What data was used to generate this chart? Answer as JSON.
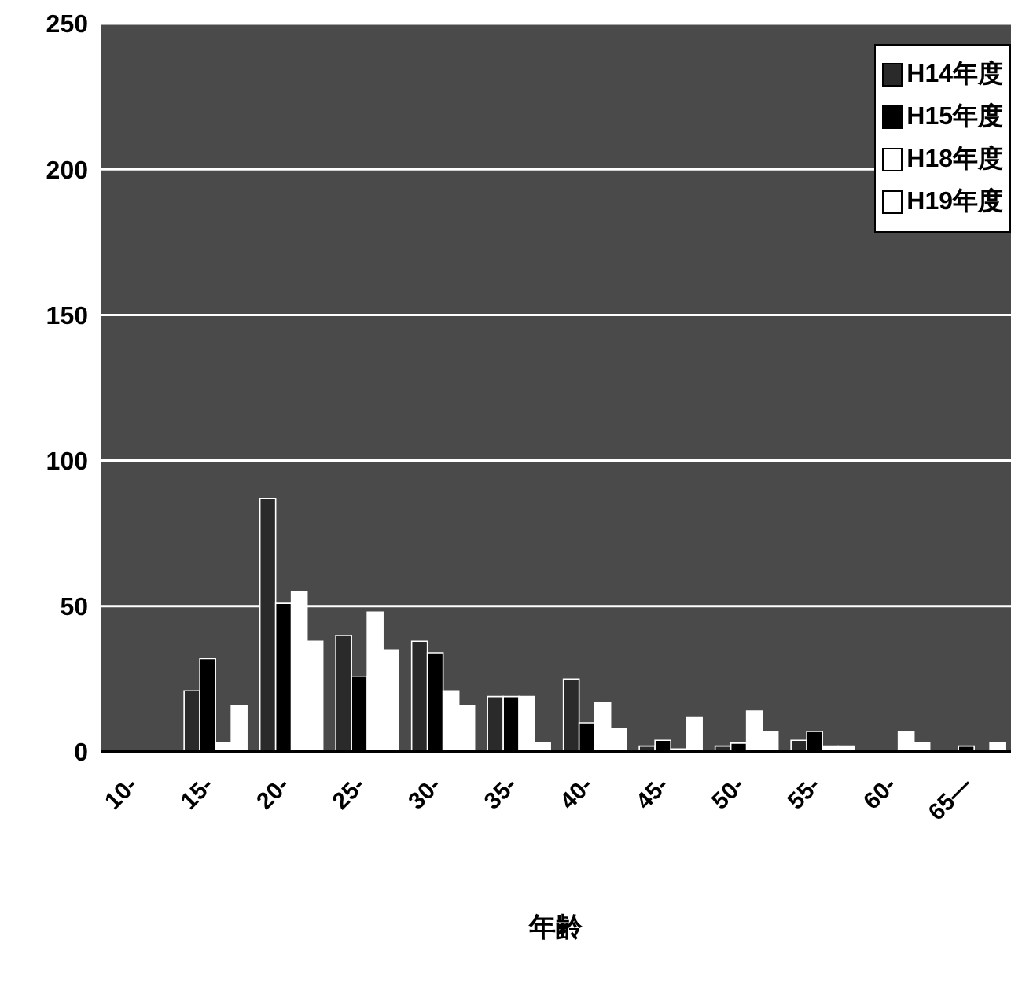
{
  "chart_data": {
    "type": "bar",
    "xlabel": "年齢",
    "categories": [
      "10-",
      "15-",
      "20-",
      "25-",
      "30-",
      "35-",
      "40-",
      "45-",
      "50-",
      "55-",
      "60-",
      "65—"
    ],
    "series": [
      {
        "name": "H14年度",
        "color": "#2a2a2a",
        "values": [
          0,
          21,
          87,
          40,
          38,
          19,
          25,
          2,
          2,
          4,
          0,
          0
        ]
      },
      {
        "name": "H15年度",
        "color": "#000000",
        "values": [
          0,
          32,
          51,
          26,
          34,
          19,
          10,
          4,
          3,
          7,
          0,
          2
        ]
      },
      {
        "name": "H18年度",
        "color": "#ffffff",
        "values": [
          0,
          3,
          55,
          48,
          21,
          19,
          17,
          1,
          14,
          2,
          7,
          0
        ]
      },
      {
        "name": "H19年度",
        "color": "#ffffff",
        "values": [
          0,
          16,
          38,
          35,
          16,
          3,
          8,
          12,
          7,
          2,
          3,
          3
        ]
      }
    ],
    "ylim": [
      0,
      250
    ],
    "yticks": [
      0,
      50,
      100,
      150,
      200,
      250
    ],
    "grid": "y",
    "legend": "top right"
  }
}
